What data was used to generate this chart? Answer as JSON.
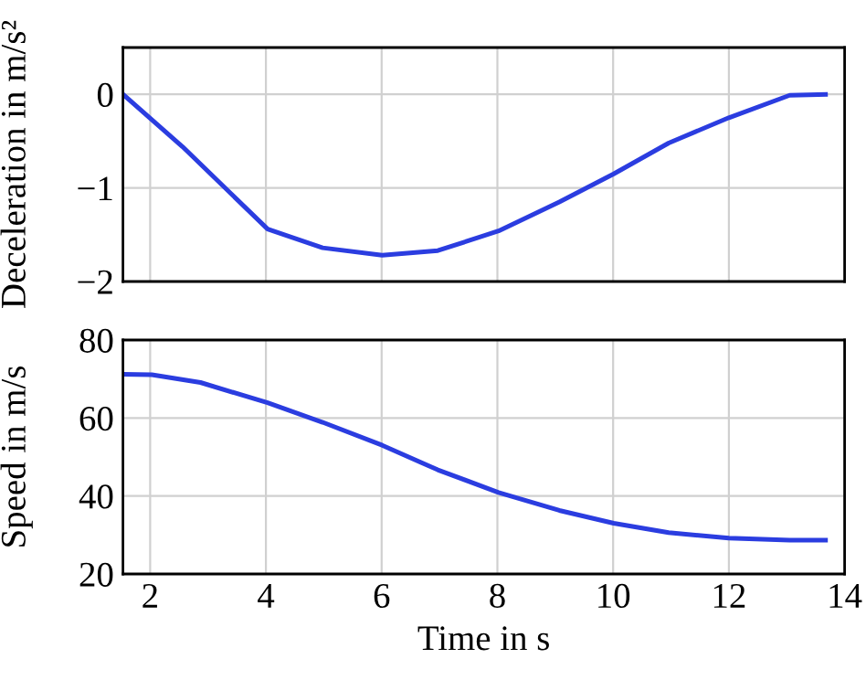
{
  "chart_data": [
    {
      "type": "line",
      "ylabel": "Deceleration in m/s²",
      "x": [
        1.53,
        2.56,
        4.03,
        4.98,
        6.01,
        6.97,
        8.02,
        9.07,
        10.01,
        10.96,
        12.0,
        13.05,
        13.67
      ],
      "series": [
        {
          "color": "#2b3de0",
          "values": [
            0,
            -0.56,
            -1.44,
            -1.64,
            -1.72,
            -1.67,
            -1.46,
            -1.15,
            -0.85,
            -0.52,
            -0.25,
            -0.01,
            0
          ]
        }
      ],
      "xlim": [
        1.53,
        14
      ],
      "xticks": [
        2,
        4,
        6,
        8,
        10,
        12,
        14
      ],
      "ylim": [
        -2,
        0.5
      ],
      "yticks": [
        {
          "value": -2,
          "label": "−2"
        },
        {
          "value": -1,
          "label": "−1"
        },
        0
      ],
      "grid": true,
      "tick_labels": "y",
      "marker": "none"
    },
    {
      "type": "line",
      "ylabel": "Speed in m/s",
      "xlabel": "Time in s",
      "x": [
        1.53,
        2.03,
        2.87,
        4.03,
        4.98,
        6.01,
        6.97,
        8.02,
        9.07,
        10.01,
        10.96,
        12.0,
        13.05,
        13.67
      ],
      "series": [
        {
          "color": "#2b3de0",
          "values": [
            71.2,
            71.1,
            69.1,
            63.9,
            58.9,
            53,
            46.7,
            40.9,
            36.3,
            33,
            30.6,
            29.2,
            28.7,
            28.7
          ]
        }
      ],
      "xlim": [
        1.53,
        14
      ],
      "xticks": [
        2,
        4,
        6,
        8,
        10,
        12,
        14
      ],
      "ylim": [
        20,
        80
      ],
      "yticks": [
        20,
        40,
        60,
        80
      ],
      "grid": true,
      "marker": "none"
    }
  ]
}
